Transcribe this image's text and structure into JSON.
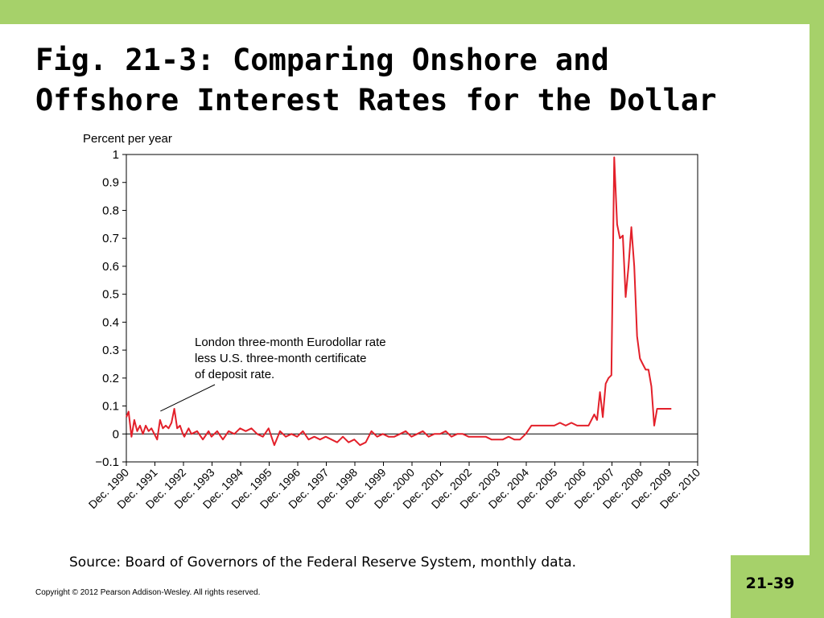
{
  "slide": {
    "title_line1": "Fig. 21-3: Comparing Onshore and",
    "title_line2": "Offshore Interest Rates for the Dollar",
    "source": "Source: Board of Governors of the Federal Reserve System, monthly data.",
    "copyright": "Copyright © 2012 Pearson Addison-Wesley. All rights reserved.",
    "page_number": "21-39",
    "accent_color": "#a6d16a"
  },
  "chart_data": {
    "type": "line",
    "ylabel": "Percent per year",
    "ylim": [
      -0.1,
      1
    ],
    "yticks": [
      -0.1,
      0,
      0.1,
      0.2,
      0.3,
      0.4,
      0.5,
      0.6,
      0.7,
      0.8,
      0.9,
      1
    ],
    "ytick_labels": [
      "−0.1",
      "0",
      "0.1",
      "0.2",
      "0.3",
      "0.4",
      "0.5",
      "0.6",
      "0.7",
      "0.8",
      "0.9",
      "1"
    ],
    "xlim": [
      1990.92,
      2010.92
    ],
    "x_tick_labels": [
      "Dec. 1990",
      "Dec. 1991",
      "Dec. 1992",
      "Dec. 1993",
      "Dec. 1994",
      "Dec. 1995",
      "Dec. 1996",
      "Dec. 1997",
      "Dec. 1998",
      "Dec. 1999",
      "Dec. 2000",
      "Dec. 2001",
      "Dec. 2002",
      "Dec. 2003",
      "Dec. 2004",
      "Dec. 2005",
      "Dec. 2006",
      "Dec. 2007",
      "Dec. 2008",
      "Dec. 2009",
      "Dec. 2010"
    ],
    "zero_line": true,
    "line_color": "#e3202a",
    "annotation": {
      "lines": [
        "London three-month Eurodollar rate",
        "less U.S. three-month certificate",
        "of deposit rate."
      ],
      "arrow_to": [
        1992.0,
        0.07
      ]
    },
    "series": [
      {
        "x": [
          1990.92,
          1991.0,
          1991.1,
          1991.2,
          1991.3,
          1991.4,
          1991.5,
          1991.6,
          1991.7,
          1991.8,
          1991.9,
          1992.0,
          1992.1,
          1992.2,
          1992.3,
          1992.4,
          1992.5,
          1992.6,
          1992.7,
          1992.8,
          1992.9,
          1992.95,
          1993.0,
          1993.1,
          1993.2,
          1993.4,
          1993.6,
          1993.8,
          1993.9,
          1994.1,
          1994.3,
          1994.5,
          1994.7,
          1994.9,
          1995.1,
          1995.3,
          1995.5,
          1995.7,
          1995.9,
          1996.1,
          1996.3,
          1996.5,
          1996.7,
          1996.9,
          1997.1,
          1997.3,
          1997.5,
          1997.7,
          1997.9,
          1998.1,
          1998.3,
          1998.5,
          1998.7,
          1998.9,
          1999.1,
          1999.3,
          1999.5,
          1999.7,
          1999.9,
          2000.1,
          2000.3,
          2000.5,
          2000.7,
          2000.9,
          2001.1,
          2001.3,
          2001.5,
          2001.7,
          2001.9,
          2002.1,
          2002.3,
          2002.5,
          2002.7,
          2002.9,
          2003.1,
          2003.3,
          2003.5,
          2003.7,
          2003.9,
          2004.1,
          2004.3,
          2004.5,
          2004.7,
          2004.9,
          2005.1,
          2005.3,
          2005.5,
          2005.7,
          2005.9,
          2006.1,
          2006.3,
          2006.5,
          2006.7,
          2006.9,
          2007.1,
          2007.3,
          2007.4,
          2007.5,
          2007.6,
          2007.7,
          2007.8,
          2007.9,
          2008.0,
          2008.1,
          2008.2,
          2008.3,
          2008.4,
          2008.5,
          2008.6,
          2008.7,
          2008.8,
          2008.9,
          2009.0,
          2009.1,
          2009.2,
          2009.3,
          2009.4,
          2009.5,
          2009.6,
          2009.7,
          2009.8,
          2009.9,
          2010.0
        ],
        "y": [
          0.06,
          0.08,
          -0.01,
          0.05,
          0.01,
          0.03,
          0.0,
          0.03,
          0.01,
          0.02,
          0.0,
          -0.02,
          0.05,
          0.02,
          0.03,
          0.02,
          0.04,
          0.09,
          0.02,
          0.03,
          0.0,
          -0.01,
          0.0,
          0.02,
          0.0,
          0.01,
          -0.02,
          0.01,
          -0.01,
          0.01,
          -0.02,
          0.01,
          0.0,
          0.02,
          0.01,
          0.02,
          0.0,
          -0.01,
          0.02,
          -0.04,
          0.01,
          -0.01,
          0.0,
          -0.01,
          0.01,
          -0.02,
          -0.01,
          -0.02,
          -0.01,
          -0.02,
          -0.03,
          -0.01,
          -0.03,
          -0.02,
          -0.04,
          -0.03,
          0.01,
          -0.01,
          0.0,
          -0.01,
          -0.01,
          0.0,
          0.01,
          -0.01,
          0.0,
          0.01,
          -0.01,
          0.0,
          0.0,
          0.01,
          -0.01,
          0.0,
          0.0,
          -0.01,
          -0.01,
          -0.01,
          -0.01,
          -0.02,
          -0.02,
          -0.02,
          -0.01,
          -0.02,
          -0.02,
          0.0,
          0.03,
          0.03,
          0.03,
          0.03,
          0.03,
          0.04,
          0.03,
          0.04,
          0.03,
          0.03,
          0.03,
          0.07,
          0.05,
          0.15,
          0.06,
          0.18,
          0.2,
          0.21,
          0.99,
          0.75,
          0.7,
          0.71,
          0.49,
          0.6,
          0.74,
          0.6,
          0.35,
          0.27,
          0.25,
          0.23,
          0.23,
          0.17,
          0.03,
          0.09,
          0.09,
          0.09,
          0.09,
          0.09,
          0.09
        ]
      }
    ]
  }
}
